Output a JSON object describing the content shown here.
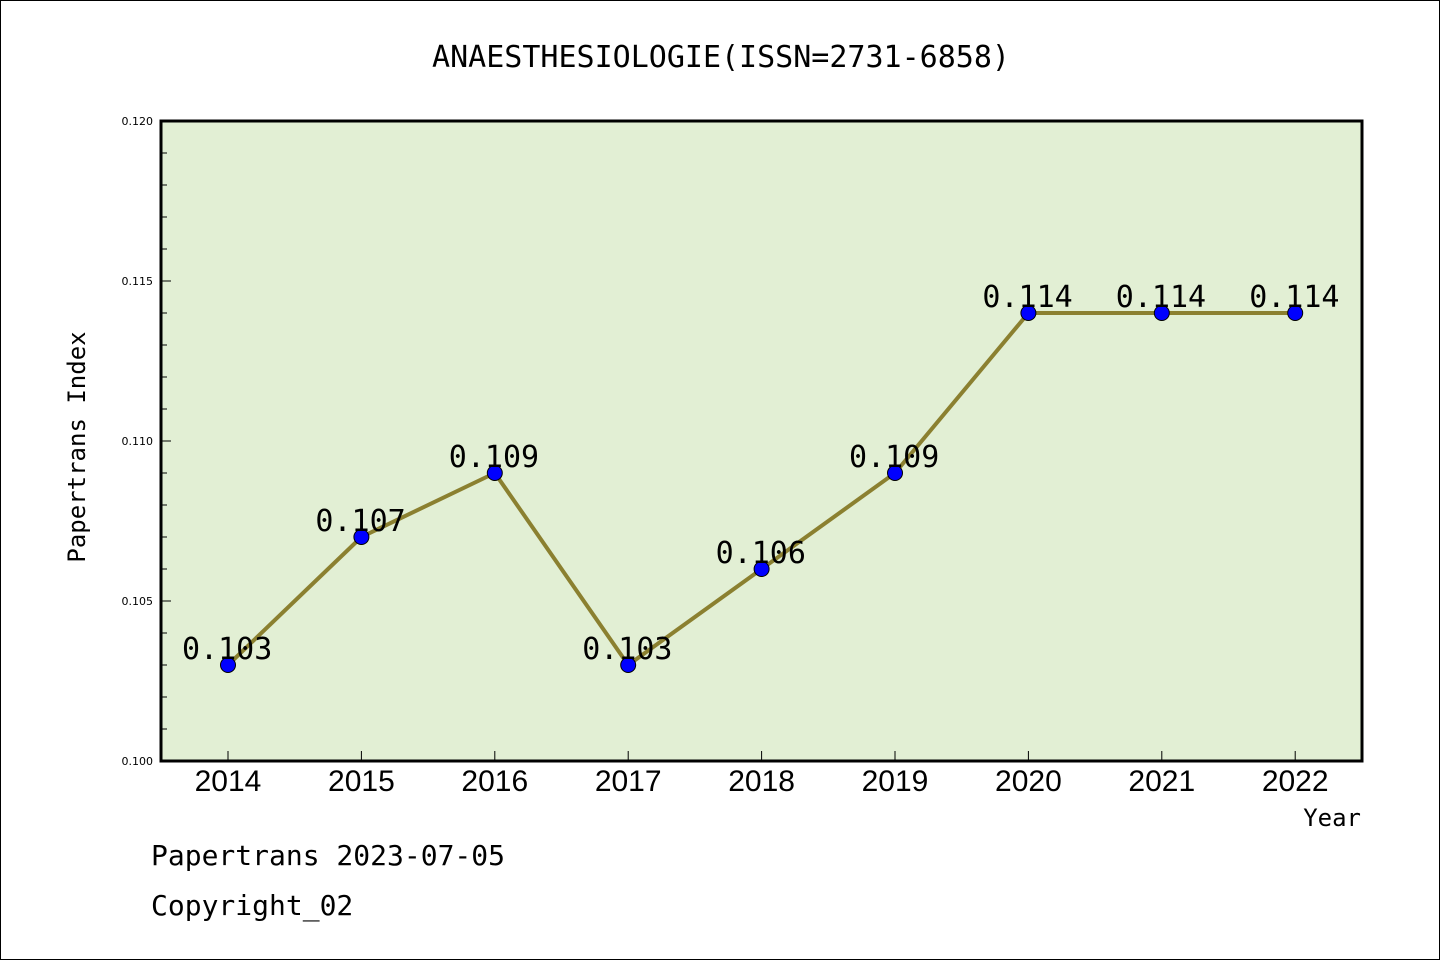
{
  "chart_data": {
    "type": "line",
    "title": "ANAESTHESIOLOGIE(ISSN=2731-6858)",
    "xlabel": "Year",
    "ylabel": "Papertrans Index",
    "categories": [
      "2014",
      "2015",
      "2016",
      "2017",
      "2018",
      "2019",
      "2020",
      "2021",
      "2022"
    ],
    "values": [
      0.103,
      0.107,
      0.109,
      0.103,
      0.106,
      0.109,
      0.114,
      0.114,
      0.114
    ],
    "data_labels": [
      "0.103",
      "0.107",
      "0.109",
      "0.103",
      "0.106",
      "0.109",
      "0.114",
      "0.114",
      "0.114"
    ],
    "ylim": [
      0.1,
      0.12
    ],
    "yticks": [
      0.1,
      0.105,
      0.11,
      0.115,
      0.12
    ],
    "ytick_labels": [
      "0.100",
      "0.105",
      "0.110",
      "0.115",
      "0.120"
    ],
    "grid": false,
    "colors": {
      "line": "#8b8030",
      "marker": "#0000ff",
      "plot_background": "#e2efd4"
    }
  },
  "footer": {
    "line1": "Papertrans 2023-07-05",
    "line2": "Copyright_02"
  }
}
